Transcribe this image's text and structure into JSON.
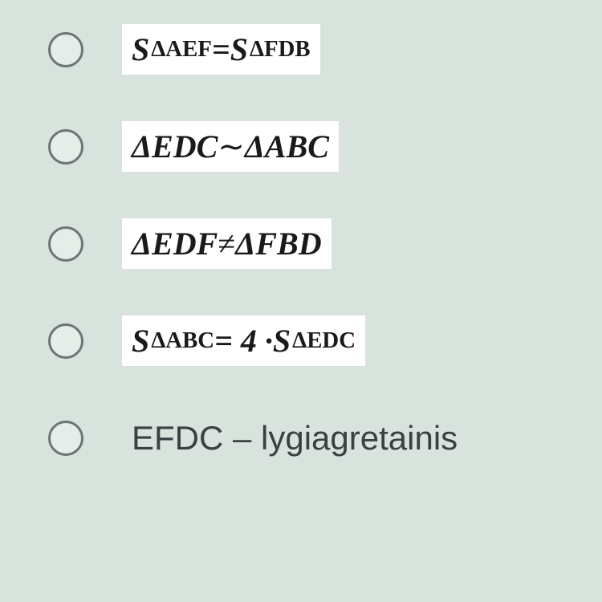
{
  "background_color": "#d9e3dd",
  "option_bg_color": "#ffffff",
  "text_color": "#1a1a1a",
  "radio_border_color": "#6a7578",
  "font_size_main": 40,
  "font_size_plain": 42,
  "options": [
    {
      "id": "opt1",
      "type": "math",
      "parts": [
        {
          "kind": "S_sub",
          "text": "ΔAEF"
        },
        {
          "kind": "text",
          "text": " = "
        },
        {
          "kind": "S_sub",
          "text": "ΔFDB"
        }
      ]
    },
    {
      "id": "opt2",
      "type": "math",
      "parts": [
        {
          "kind": "text",
          "text": "ΔEDC "
        },
        {
          "kind": "sym",
          "text": "∼"
        },
        {
          "kind": "text",
          "text": " ΔABC"
        }
      ]
    },
    {
      "id": "opt3",
      "type": "math",
      "parts": [
        {
          "kind": "text",
          "text": "ΔEDF "
        },
        {
          "kind": "sym",
          "text": "≠"
        },
        {
          "kind": "text",
          "text": " ΔFBD"
        }
      ]
    },
    {
      "id": "opt4",
      "type": "math",
      "parts": [
        {
          "kind": "S_sub",
          "text": "ΔABC"
        },
        {
          "kind": "text",
          "text": " = 4 · "
        },
        {
          "kind": "S_sub",
          "text": "ΔEDC"
        }
      ]
    },
    {
      "id": "opt5",
      "type": "plain",
      "text": "EFDC – lygiagretainis"
    }
  ]
}
